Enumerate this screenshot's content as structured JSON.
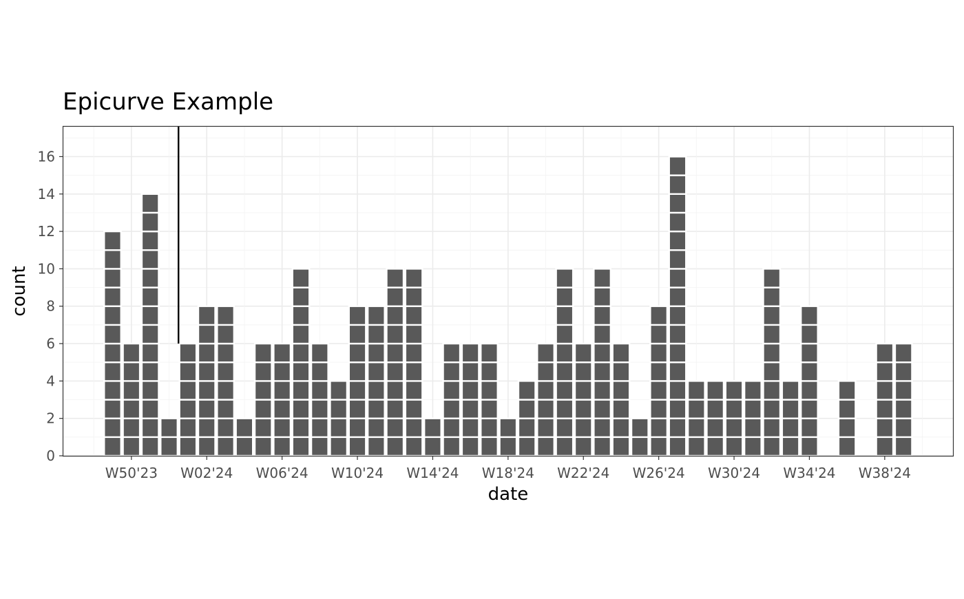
{
  "chart_data": {
    "type": "bar",
    "title": "Epicurve Example",
    "xlabel": "date",
    "ylabel": "count",
    "x_unit": "ISO week",
    "ylim": [
      0,
      17.6
    ],
    "y_ticks": [
      "0",
      "2",
      "4",
      "6",
      "8",
      "10",
      "12",
      "14",
      "16"
    ],
    "grid": true,
    "style": "theme_bw stacked unit tiles (each case one tile)",
    "colors": {
      "bar": "#595959",
      "tile_border": "#ffffff",
      "grid_major": "#ebebeb",
      "grid_minor": "#f4f4f4",
      "panel_border": "#333333",
      "marker_line": "#000000"
    },
    "categories": [
      "W49'23",
      "W50'23",
      "W51'23",
      "W52'23",
      "W01'24",
      "W02'24",
      "W03'24",
      "W04'24",
      "W05'24",
      "W06'24",
      "W07'24",
      "W08'24",
      "W09'24",
      "W10'24",
      "W11'24",
      "W12'24",
      "W13'24",
      "W14'24",
      "W15'24",
      "W16'24",
      "W17'24",
      "W18'24",
      "W19'24",
      "W20'24",
      "W21'24",
      "W22'24",
      "W23'24",
      "W24'24",
      "W25'24",
      "W26'24",
      "W27'24",
      "W28'24",
      "W29'24",
      "W30'24",
      "W31'24",
      "W32'24",
      "W33'24",
      "W34'24",
      "W35'24",
      "W36'24",
      "W37'24",
      "W38'24",
      "W39'24"
    ],
    "values": [
      12,
      6,
      14,
      2,
      6,
      8,
      8,
      2,
      6,
      6,
      10,
      6,
      4,
      8,
      8,
      10,
      10,
      2,
      6,
      6,
      6,
      2,
      4,
      6,
      10,
      6,
      10,
      6,
      2,
      8,
      16,
      4,
      4,
      4,
      4,
      10,
      4,
      8,
      0,
      4,
      0,
      6,
      6
    ],
    "x_tick_labels": [
      "W50'23",
      "W02'24",
      "W06'24",
      "W10'24",
      "W14'24",
      "W18'24",
      "W22'24",
      "W26'24",
      "W30'24",
      "W34'24",
      "W38'24"
    ],
    "reference_line": {
      "week": "W52'23",
      "position": "boundary between W52'23 and W01'24",
      "y_from": 6
    }
  }
}
